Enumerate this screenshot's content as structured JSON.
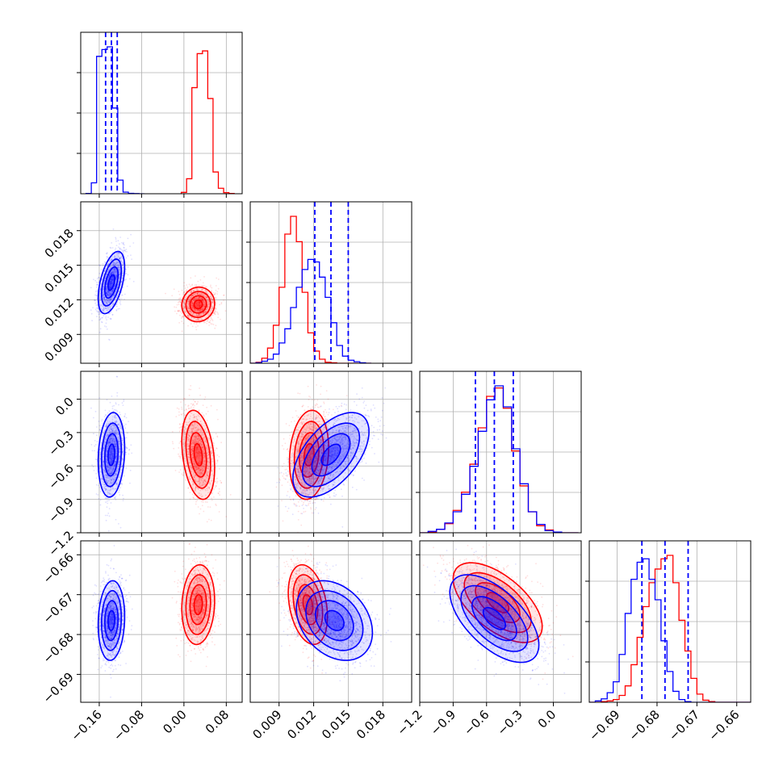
{
  "chart_data": {
    "type": "corner",
    "title": "",
    "grid": true,
    "series": [
      {
        "name": "",
        "color": "#0000ff"
      },
      {
        "name": "",
        "color": "#ff0000"
      }
    ],
    "parameters": [
      {
        "label": "",
        "range": [
          -0.195,
          0.11
        ],
        "ticks": [
          -0.16,
          -0.08,
          0.0,
          0.08
        ],
        "tick_labels": [
          "−0.16",
          "−0.08",
          "0.00",
          "0.08"
        ]
      },
      {
        "label": "",
        "range": [
          0.0065,
          0.0205
        ],
        "ticks": [
          0.009,
          0.012,
          0.015,
          0.018
        ],
        "tick_labels": [
          "0.009",
          "0.012",
          "0.015",
          "0.018"
        ]
      },
      {
        "label": "",
        "range": [
          -1.2,
          0.25
        ],
        "ticks": [
          -1.2,
          -0.9,
          -0.6,
          -0.3,
          0.0
        ],
        "tick_labels": [
          "−1.2",
          "−0.9",
          "−0.6",
          "−0.3",
          "0.0"
        ]
      },
      {
        "label": "",
        "range": [
          -0.697,
          -0.6565
        ],
        "ticks": [
          -0.69,
          -0.68,
          -0.67,
          -0.66
        ],
        "tick_labels": [
          "−0.69",
          "−0.68",
          "−0.67",
          "−0.66"
        ]
      }
    ],
    "quantiles_blue": [
      [
        -0.148,
        -0.137,
        -0.126
      ],
      [
        0.0121,
        0.0135,
        0.015
      ],
      [
        -0.7,
        -0.53,
        -0.36
      ],
      [
        -0.6838,
        -0.678,
        -0.6722
      ]
    ],
    "marginals": [
      {
        "edges": [
          -0.185,
          -0.175,
          -0.165,
          -0.155,
          -0.145,
          -0.135,
          -0.125,
          -0.115,
          -0.105,
          -0.095,
          -0.085,
          -0.075,
          -0.005,
          0.005,
          0.015,
          0.025,
          0.035,
          0.045,
          0.055,
          0.065,
          0.075,
          0.085,
          0.095
        ],
        "blue": {
          "x0": -0.185,
          "w": 0.01,
          "counts": [
            2,
            80,
            1010,
            1060,
            1080,
            630,
            100,
            12,
            3,
            1,
            0
          ]
        },
        "red": {
          "x0": -0.005,
          "w": 0.01,
          "counts": [
            10,
            110,
            780,
            1030,
            1050,
            700,
            160,
            40,
            8,
            2
          ]
        }
      },
      {
        "blue": {
          "x0": 0.0065,
          "w": 0.0005,
          "counts": [
            0,
            1,
            4,
            8,
            18,
            40,
            68,
            110,
            150,
            185,
            205,
            200,
            170,
            130,
            80,
            35,
            14,
            6,
            3,
            1,
            0
          ]
        },
        "red": {
          "x0": 0.0065,
          "w": 0.0005,
          "counts": [
            0,
            2,
            10,
            30,
            75,
            150,
            255,
            290,
            240,
            140,
            60,
            24,
            8,
            2,
            1,
            0,
            0,
            0,
            0,
            0,
            0
          ]
        }
      },
      {
        "blue": {
          "x0": -1.2,
          "w": 0.075,
          "counts": [
            0,
            2,
            5,
            14,
            30,
            55,
            95,
            145,
            190,
            210,
            180,
            120,
            70,
            30,
            12,
            3,
            1,
            0,
            0
          ]
        },
        "red": {
          "x0": -1.2,
          "w": 0.075,
          "counts": [
            0,
            1,
            5,
            13,
            32,
            58,
            98,
            150,
            195,
            207,
            178,
            117,
            67,
            30,
            10,
            4,
            1,
            0,
            0
          ]
        }
      },
      {
        "blue": {
          "x0": -0.697,
          "w": 0.0015,
          "counts": [
            0,
            2,
            5,
            14,
            30,
            70,
            130,
            180,
            205,
            210,
            180,
            150,
            90,
            45,
            16,
            4,
            1,
            0,
            0,
            0,
            0,
            0,
            0,
            0,
            0,
            0,
            0
          ]
        },
        "red": {
          "x0": -0.697,
          "w": 0.0015,
          "counts": [
            0,
            0,
            1,
            2,
            4,
            10,
            24,
            55,
            95,
            140,
            175,
            195,
            210,
            215,
            175,
            120,
            75,
            35,
            12,
            3,
            1,
            0,
            0,
            0,
            0,
            0,
            0
          ]
        }
      }
    ],
    "joint": [
      {
        "row": 1,
        "col": 0,
        "blue": {
          "mean": [
            -0.137,
            0.0135
          ],
          "sd": [
            0.0125,
            0.00135
          ],
          "rho": 0.5
        },
        "red": {
          "mean": [
            0.027,
            0.0116
          ],
          "sd": [
            0.0155,
            0.00075
          ],
          "rho": 0.05
        }
      },
      {
        "row": 2,
        "col": 0,
        "blue": {
          "mean": [
            -0.137,
            -0.5
          ],
          "sd": [
            0.0125,
            0.19
          ],
          "rho": 0.15
        },
        "red": {
          "mean": [
            0.027,
            -0.5
          ],
          "sd": [
            0.0155,
            0.2
          ],
          "rho": -0.3
        }
      },
      {
        "row": 2,
        "col": 1,
        "blue": {
          "mean": [
            0.0135,
            -0.5
          ],
          "sd": [
            0.00165,
            0.19
          ],
          "rho": 0.55
        },
        "red": {
          "mean": [
            0.0116,
            -0.5
          ],
          "sd": [
            0.00085,
            0.2
          ],
          "rho": 0.15
        }
      },
      {
        "row": 3,
        "col": 0,
        "blue": {
          "mean": [
            -0.137,
            -0.6765
          ],
          "sd": [
            0.0125,
            0.005
          ],
          "rho": 0.1
        },
        "red": {
          "mean": [
            0.027,
            -0.6725
          ],
          "sd": [
            0.0155,
            0.005
          ],
          "rho": 0.1
        }
      },
      {
        "row": 3,
        "col": 1,
        "blue": {
          "mean": [
            0.0138,
            -0.6765
          ],
          "sd": [
            0.00165,
            0.005
          ],
          "rho": -0.3
        },
        "red": {
          "mean": [
            0.0115,
            -0.6725
          ],
          "sd": [
            0.00085,
            0.005
          ],
          "rho": -0.3
        }
      },
      {
        "row": 3,
        "col": 2,
        "blue": {
          "mean": [
            -0.53,
            -0.676
          ],
          "sd": [
            0.2,
            0.0055
          ],
          "rho": -0.6
        },
        "red": {
          "mean": [
            -0.5,
            -0.672
          ],
          "sd": [
            0.2,
            0.005
          ],
          "rho": -0.6
        }
      }
    ]
  }
}
